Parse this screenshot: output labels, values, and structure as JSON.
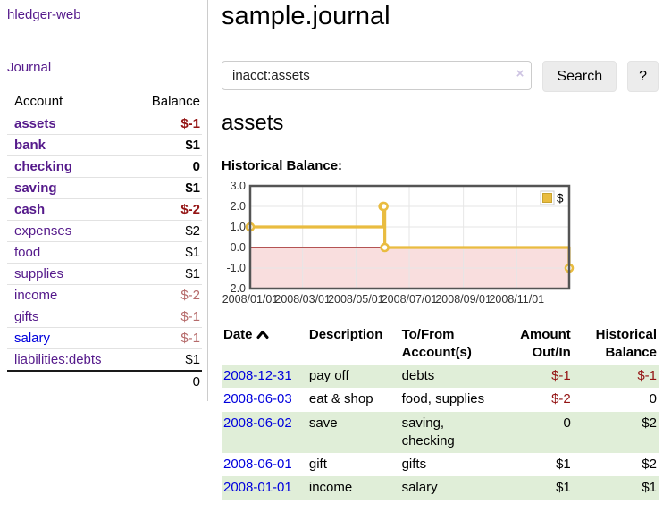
{
  "app": {
    "title": "hledger-web"
  },
  "sidebar": {
    "journal_link": "Journal",
    "account_table": {
      "headers": {
        "account": "Account",
        "balance": "Balance"
      },
      "rows": [
        {
          "account": "assets",
          "balance": "$-1",
          "indent": 0,
          "bold": true,
          "balance_color": "neg-strong",
          "link_color": "purple"
        },
        {
          "account": "bank",
          "balance": "$1",
          "indent": 1,
          "bold": true,
          "balance_color": "normal",
          "link_color": "purple"
        },
        {
          "account": "checking",
          "balance": "0",
          "indent": 2,
          "bold": true,
          "balance_color": "normal",
          "link_color": "purple"
        },
        {
          "account": "saving",
          "balance": "$1",
          "indent": 2,
          "bold": true,
          "balance_color": "normal",
          "link_color": "purple"
        },
        {
          "account": "cash",
          "balance": "$-2",
          "indent": 1,
          "bold": true,
          "balance_color": "neg-strong",
          "link_color": "purple"
        },
        {
          "account": "expenses",
          "balance": "$2",
          "indent": 0,
          "bold": false,
          "balance_color": "normal",
          "link_color": "purple"
        },
        {
          "account": "food",
          "balance": "$1",
          "indent": 1,
          "bold": false,
          "balance_color": "normal",
          "link_color": "purple"
        },
        {
          "account": "supplies",
          "balance": "$1",
          "indent": 1,
          "bold": false,
          "balance_color": "normal",
          "link_color": "purple"
        },
        {
          "account": "income",
          "balance": "$-2",
          "indent": 0,
          "bold": false,
          "balance_color": "neg-muted",
          "link_color": "purple"
        },
        {
          "account": "gifts",
          "balance": "$-1",
          "indent": 1,
          "bold": false,
          "balance_color": "neg-muted",
          "link_color": "purple"
        },
        {
          "account": "salary",
          "balance": "$-1",
          "indent": 1,
          "bold": false,
          "balance_color": "neg-muted",
          "link_color": "blue"
        },
        {
          "account": "liabilities:debts",
          "balance": "$1",
          "indent": 0,
          "bold": false,
          "balance_color": "normal",
          "link_color": "purple"
        }
      ],
      "total": "0"
    }
  },
  "main": {
    "title": "sample.journal",
    "search": {
      "value": "inacct:assets",
      "clear_icon": "×",
      "search_button": "Search",
      "help_button": "?"
    },
    "account_heading": "assets",
    "chart_title": "Historical Balance:",
    "register": {
      "headers": {
        "date": "Date",
        "description": "Description",
        "accounts": "To/From Account(s)",
        "amount": "Amount Out/In",
        "balance": "Historical Balance"
      },
      "rows": [
        {
          "date": "2008-12-31",
          "description": "pay off",
          "accounts": "debts",
          "amount": "$-1",
          "balance": "$-1",
          "amount_neg": true,
          "balance_neg": true,
          "shaded": true
        },
        {
          "date": "2008-06-03",
          "description": "eat & shop",
          "accounts": "food, supplies",
          "amount": "$-2",
          "balance": "0",
          "amount_neg": true,
          "balance_neg": false,
          "shaded": false
        },
        {
          "date": "2008-06-02",
          "description": "save",
          "accounts": "saving, checking",
          "amount": "0",
          "balance": "$2",
          "amount_neg": false,
          "balance_neg": false,
          "shaded": true
        },
        {
          "date": "2008-06-01",
          "description": "gift",
          "accounts": "gifts",
          "amount": "$1",
          "balance": "$2",
          "amount_neg": false,
          "balance_neg": false,
          "shaded": false
        },
        {
          "date": "2008-01-01",
          "description": "income",
          "accounts": "salary",
          "amount": "$1",
          "balance": "$1",
          "amount_neg": false,
          "balance_neg": false,
          "shaded": true
        }
      ]
    }
  },
  "chart_data": {
    "type": "line",
    "step": true,
    "title": "Historical Balance",
    "series": [
      {
        "name": "$",
        "color": "#e9bc40",
        "points": [
          {
            "x": "2008-01-01",
            "y": 1
          },
          {
            "x": "2008-06-01",
            "y": 2
          },
          {
            "x": "2008-06-02",
            "y": 2
          },
          {
            "x": "2008-06-03",
            "y": 0
          },
          {
            "x": "2008-12-31",
            "y": -1
          }
        ]
      }
    ],
    "x_range": [
      "2008-01-01",
      "2008-12-31"
    ],
    "ylim": [
      -2,
      3
    ],
    "y_ticks": [
      "3.0",
      "2.0",
      "1.0",
      "0.0",
      "-1.0",
      "-2.0"
    ],
    "x_ticks": [
      {
        "date": "2008-01-01",
        "label": "2008/01/01"
      },
      {
        "date": "2008-03-01",
        "label": "2008/03/01"
      },
      {
        "date": "2008-05-01",
        "label": "2008/05/01"
      },
      {
        "date": "2008-07-01",
        "label": "2008/07/01"
      },
      {
        "date": "2008-09-01",
        "label": "2008/09/01"
      },
      {
        "date": "2008-11-01",
        "label": "2008/11/01"
      }
    ],
    "grid": true,
    "legend": {
      "label": "$",
      "position": "top-right"
    },
    "negative_region_color": "#f9dede",
    "zero_line_color": "#8b0000",
    "border_color": "#545454",
    "grid_color": "#e6e6e6"
  },
  "colors": {
    "accent_purple": "#551a8b",
    "link_blue": "#0000dd",
    "negative_strong": "#941414",
    "negative_muted": "#b56a6a",
    "row_green": "#e0eed8",
    "chart_line": "#e9bc40"
  }
}
